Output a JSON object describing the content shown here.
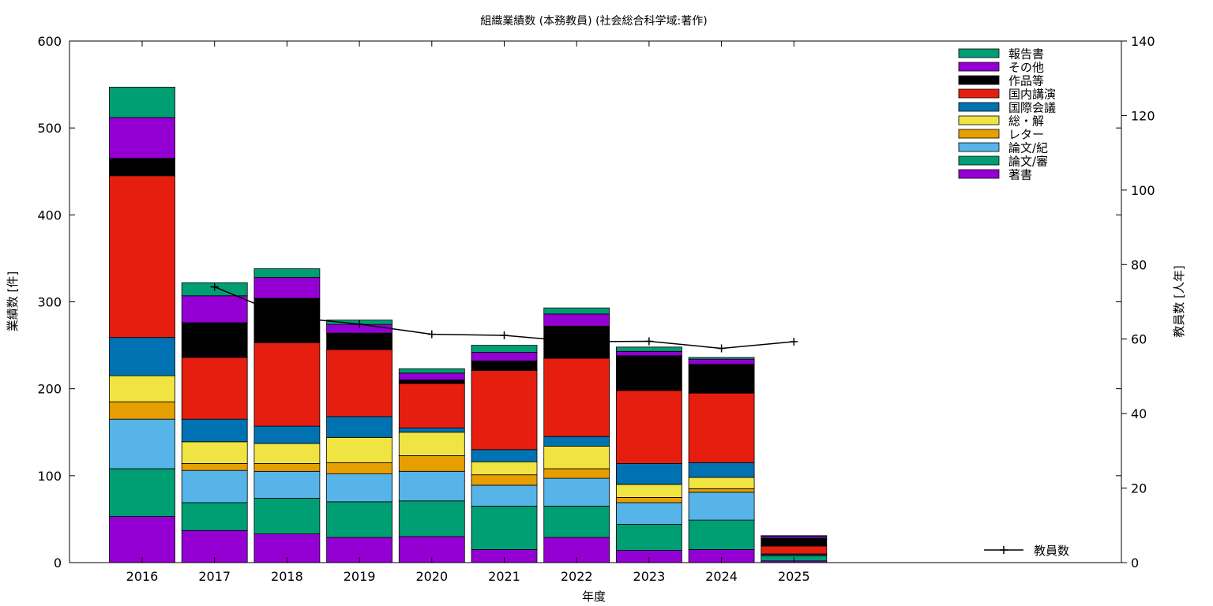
{
  "chart_data": {
    "type": "bar",
    "stacked": true,
    "title": "組織業績数 (本務教員) (社会総合科学域:著作)",
    "xlabel": "年度",
    "ylabel": "業績数 [件]",
    "y2label": "教員数 [人年]",
    "ylim": [
      0,
      600
    ],
    "y2lim": [
      0,
      140
    ],
    "yticks": [
      0,
      100,
      200,
      300,
      400,
      500,
      600
    ],
    "y2ticks": [
      0,
      20,
      40,
      60,
      80,
      100,
      120,
      140
    ],
    "categories": [
      "2016",
      "2017",
      "2018",
      "2019",
      "2020",
      "2021",
      "2022",
      "2023",
      "2024",
      "2025"
    ],
    "legend_position": "top-right",
    "series": [
      {
        "name": "著書",
        "color": "#9400d3",
        "values": [
          53,
          37,
          33,
          29,
          30,
          15,
          29,
          14,
          15,
          2
        ]
      },
      {
        "name": "論文/審",
        "color": "#009e73",
        "values": [
          55,
          32,
          41,
          41,
          41,
          50,
          36,
          30,
          34,
          6
        ]
      },
      {
        "name": "論文/紀",
        "color": "#56b4e9",
        "values": [
          57,
          37,
          31,
          32,
          34,
          24,
          32,
          25,
          32,
          1
        ]
      },
      {
        "name": "レター",
        "color": "#e69f00",
        "values": [
          20,
          8,
          9,
          13,
          18,
          12,
          11,
          6,
          4,
          0
        ]
      },
      {
        "name": "総・解",
        "color": "#f0e442",
        "values": [
          30,
          25,
          23,
          29,
          27,
          15,
          26,
          15,
          13,
          0
        ]
      },
      {
        "name": "国際会議",
        "color": "#0072b2",
        "values": [
          44,
          26,
          20,
          24,
          5,
          14,
          11,
          24,
          17,
          1
        ]
      },
      {
        "name": "国内講演",
        "color": "#e51e10",
        "values": [
          186,
          71,
          96,
          77,
          51,
          91,
          90,
          84,
          80,
          9
        ]
      },
      {
        "name": "作品等",
        "color": "#000000",
        "values": [
          20,
          40,
          51,
          19,
          4,
          11,
          37,
          40,
          33,
          9
        ]
      },
      {
        "name": "その他",
        "color": "#9400d3",
        "values": [
          47,
          31,
          24,
          10,
          8,
          10,
          14,
          5,
          6,
          2
        ]
      },
      {
        "name": "報告書",
        "color": "#009e73",
        "values": [
          35,
          15,
          10,
          5,
          5,
          8,
          7,
          5,
          2,
          1
        ]
      }
    ],
    "line_series": {
      "name": "教員数",
      "axis": "y2",
      "color": "#000000",
      "x": [
        "2017",
        "2018",
        "2019",
        "2020",
        "2021",
        "2022",
        "2023",
        "2024",
        "2025"
      ],
      "values": [
        74,
        66,
        64,
        61.3,
        61,
        59.3,
        59.4,
        57.5,
        59.3
      ]
    }
  }
}
